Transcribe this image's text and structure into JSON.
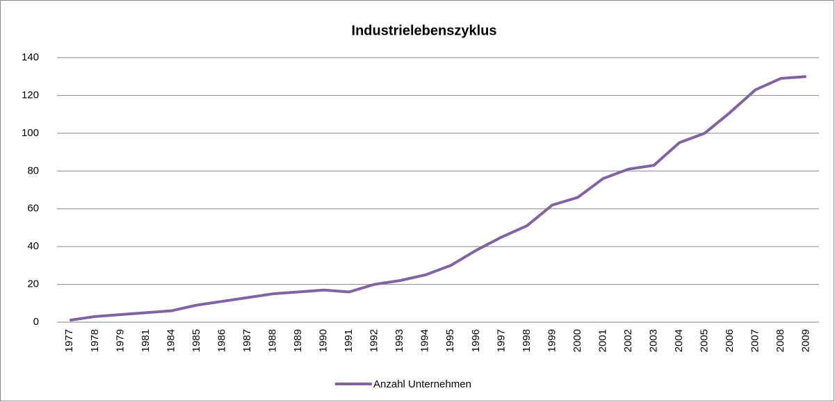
{
  "chart_data": {
    "type": "line",
    "title": "Industrielebenszyklus",
    "categories": [
      "1977",
      "1978",
      "1979",
      "1981",
      "1984",
      "1985",
      "1986",
      "1987",
      "1988",
      "1989",
      "1990",
      "1991",
      "1992",
      "1993",
      "1994",
      "1995",
      "1996",
      "1997",
      "1998",
      "1999",
      "2000",
      "2001",
      "2002",
      "2003",
      "2004",
      "2005",
      "2006",
      "2007",
      "2008",
      "2009"
    ],
    "series": [
      {
        "name": "Anzahl Unternehmen",
        "color": "#8064a2",
        "values": [
          1,
          3,
          4,
          5,
          6,
          9,
          11,
          13,
          15,
          16,
          17,
          16,
          20,
          22,
          25,
          30,
          38,
          45,
          51,
          62,
          66,
          76,
          81,
          83,
          95,
          100,
          111,
          123,
          129,
          130
        ]
      }
    ],
    "ylim": [
      0,
      140
    ],
    "yticks": [
      0,
      20,
      40,
      60,
      80,
      100,
      120,
      140
    ],
    "grid": true,
    "legend": "bottom"
  }
}
